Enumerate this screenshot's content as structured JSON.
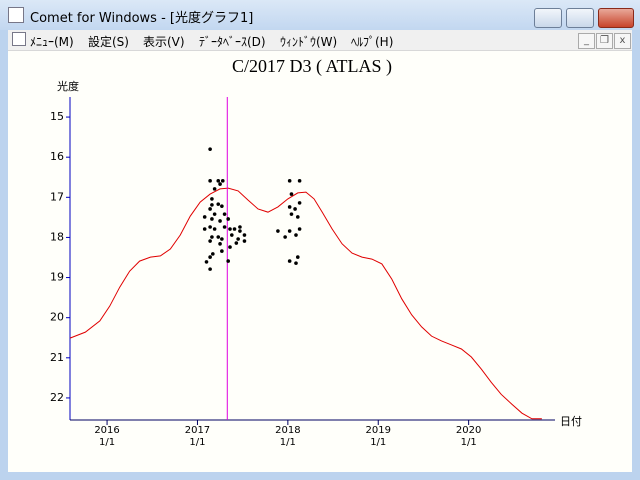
{
  "window": {
    "title": "Comet for Windows - [光度グラフ1]"
  },
  "menu": [
    "ﾒﾆｭｰ(M)",
    "設定(S)",
    "表示(V)",
    "ﾃﾞｰﾀﾍﾞｰｽ(D)",
    "ｳｨﾝﾄﾞｳ(W)",
    "ﾍﾙﾌﾟ(H)"
  ],
  "chart_data": {
    "type": "line",
    "title": "C/2017 D3 ( ATLAS )",
    "y_label": "光度",
    "x_label": "日付",
    "xlim": [
      2015.59,
      2020.9
    ],
    "ylim": [
      22.55,
      14.5
    ],
    "xticks": [
      {
        "value": 2016,
        "label": "2016\n1/1"
      },
      {
        "value": 2017,
        "label": "2017\n1/1"
      },
      {
        "value": 2018,
        "label": "2018\n1/1"
      },
      {
        "value": 2019,
        "label": "2019\n1/1"
      },
      {
        "value": 2020,
        "label": "2020\n1/1"
      }
    ],
    "yticks": [
      15,
      16,
      17,
      18,
      19,
      20,
      21,
      22
    ],
    "y_axis_color": "#0000c0",
    "x_axis_color": "#000060",
    "marker_x": 2017.33,
    "marker_color": "#e000e0",
    "curve": {
      "color": "#e00000",
      "x": [
        2015.59,
        2015.76,
        2015.92,
        2016.03,
        2016.14,
        2016.25,
        2016.36,
        2016.48,
        2016.59,
        2016.7,
        2016.81,
        2016.92,
        2017.03,
        2017.14,
        2017.25,
        2017.34,
        2017.45,
        2017.56,
        2017.67,
        2017.78,
        2017.89,
        2018.0,
        2018.11,
        2018.2,
        2018.29,
        2018.38,
        2018.49,
        2018.6,
        2018.71,
        2018.82,
        2018.93,
        2019.04,
        2019.15,
        2019.26,
        2019.37,
        2019.48,
        2019.59,
        2019.7,
        2019.81,
        2019.92,
        2020.03,
        2020.14,
        2020.25,
        2020.36,
        2020.48,
        2020.59,
        2020.7,
        2020.81
      ],
      "values": [
        20.51,
        20.36,
        20.08,
        19.71,
        19.24,
        18.84,
        18.59,
        18.49,
        18.46,
        18.29,
        17.94,
        17.47,
        17.12,
        16.92,
        16.79,
        16.77,
        16.84,
        17.07,
        17.29,
        17.37,
        17.24,
        17.04,
        16.89,
        16.87,
        17.04,
        17.37,
        17.79,
        18.16,
        18.39,
        18.49,
        18.54,
        18.66,
        19.04,
        19.53,
        19.93,
        20.23,
        20.46,
        20.58,
        20.68,
        20.78,
        20.98,
        21.28,
        21.61,
        21.91,
        22.16,
        22.38,
        22.52,
        22.52
      ]
    },
    "observations": {
      "color": "#000000",
      "x": [
        2017.14,
        2017.14,
        2017.23,
        2017.19,
        2017.25,
        2017.28,
        2017.16,
        2017.16,
        2017.23,
        2017.27,
        2017.14,
        2017.19,
        2017.3,
        2017.16,
        2017.25,
        2017.34,
        2017.14,
        2017.19,
        2017.3,
        2017.16,
        2017.23,
        2017.27,
        2017.14,
        2017.36,
        2017.41,
        2017.47,
        2017.38,
        2017.52,
        2017.45,
        2017.52,
        2017.47,
        2017.36,
        2017.27,
        2017.17,
        2017.14,
        2017.1,
        2017.14,
        2017.34,
        2017.25,
        2017.08,
        2017.08,
        2017.43,
        2018.02,
        2018.13,
        2018.04,
        2018.02,
        2018.08,
        2018.13,
        2018.11,
        2018.04,
        2018.13,
        2018.02,
        2018.09,
        2017.97,
        2017.89,
        2018.02,
        2018.11,
        2018.09
      ],
      "values": [
        15.8,
        16.59,
        16.59,
        16.79,
        16.67,
        16.59,
        17.04,
        17.19,
        17.17,
        17.22,
        17.29,
        17.42,
        17.42,
        17.54,
        17.59,
        17.54,
        17.74,
        17.79,
        17.74,
        17.99,
        17.99,
        18.04,
        18.09,
        17.79,
        17.79,
        17.84,
        17.94,
        17.94,
        18.04,
        18.09,
        17.74,
        18.24,
        18.34,
        18.41,
        18.49,
        18.61,
        18.79,
        18.59,
        18.16,
        17.49,
        17.79,
        18.14,
        16.59,
        16.59,
        16.92,
        17.24,
        17.29,
        17.14,
        17.49,
        17.42,
        17.79,
        17.84,
        17.94,
        17.99,
        17.84,
        18.59,
        18.49,
        18.64
      ]
    }
  }
}
